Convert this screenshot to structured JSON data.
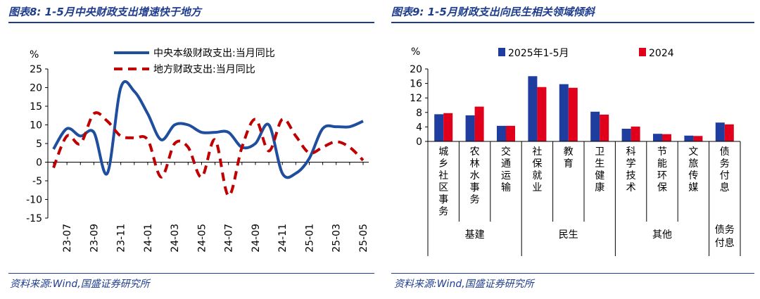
{
  "left": {
    "title": "图表8:  1-5月中央财政支出增速快于地方",
    "source": "资料来源:Wind,国盛证券研究所",
    "chart_data": {
      "type": "line",
      "y_unit": "%",
      "ylim": [
        -15,
        25
      ],
      "yticks": [
        -15,
        -10,
        -5,
        0,
        5,
        10,
        15,
        20,
        25
      ],
      "xticks": [
        "23-07",
        "23-09",
        "23-11",
        "24-01",
        "24-03",
        "24-05",
        "24-07",
        "24-09",
        "24-11",
        "25-01",
        "25-03",
        "25-05"
      ],
      "x": [
        "23-06",
        "23-07",
        "23-08",
        "23-09",
        "23-10",
        "23-11",
        "23-12",
        "24-01",
        "24-02",
        "24-03",
        "24-04",
        "24-05",
        "24-06",
        "24-07",
        "24-08",
        "24-09",
        "24-10",
        "24-11",
        "24-12",
        "25-01",
        "25-02",
        "25-03",
        "25-04",
        "25-05"
      ],
      "series": [
        {
          "name": "中央本级财政支出:当月同比",
          "color": "#1f4e9e",
          "dash": "none",
          "values": [
            3.5,
            9,
            7,
            8,
            -3,
            20,
            19,
            13,
            6,
            10,
            10,
            8,
            8,
            8,
            4,
            5,
            10,
            -3,
            -3,
            1,
            9,
            9.5,
            9.5,
            11
          ]
        },
        {
          "name": "地方财政支出:当月同比",
          "color": "#c00000",
          "dash": "dashed",
          "values": [
            -1.5,
            7,
            5,
            13,
            11,
            7,
            6.5,
            6,
            -4,
            5,
            4,
            -4,
            6,
            -9,
            4,
            11.5,
            3,
            11.5,
            7,
            2.5,
            4,
            5.5,
            4,
            0.5
          ]
        }
      ]
    }
  },
  "right": {
    "title": "图表9:  1-5月财政支出向民生相关领域倾斜",
    "source": "资料来源:Wind,国盛证券研究所",
    "chart_data": {
      "type": "bar",
      "y_unit": "%",
      "ylim": [
        0,
        20
      ],
      "yticks": [
        0,
        4,
        8,
        12,
        16,
        20
      ],
      "categories": [
        "城乡社区事务",
        "农林水事务",
        "交通运输",
        "社保就业",
        "教育",
        "卫生健康",
        "科学技术",
        "节能环保",
        "文旅传媒",
        "债务付息"
      ],
      "groups": [
        {
          "label": "基建",
          "start": 0,
          "end": 2
        },
        {
          "label": "民生",
          "start": 3,
          "end": 5
        },
        {
          "label": "其他",
          "start": 6,
          "end": 8
        },
        {
          "label": "债务\n付息",
          "start": 9,
          "end": 9
        }
      ],
      "series": [
        {
          "name": "2025年1-5月",
          "color": "#1f3d9e",
          "values": [
            7.5,
            7.2,
            4.3,
            18,
            15.8,
            8.2,
            3.5,
            2.1,
            1.6,
            5.2
          ]
        },
        {
          "name": "2024",
          "color": "#e0001b",
          "values": [
            7.8,
            9.6,
            4.3,
            15,
            14.8,
            7.4,
            4.1,
            2.0,
            1.5,
            4.7
          ]
        }
      ]
    }
  }
}
